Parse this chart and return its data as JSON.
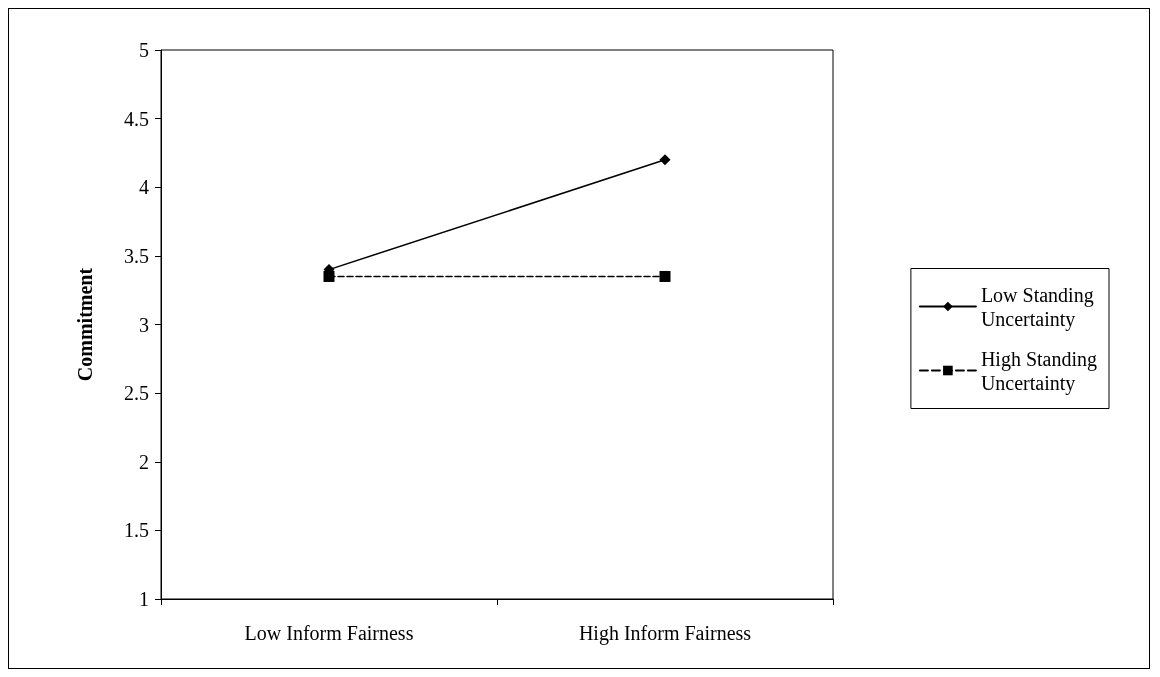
{
  "chart_data": {
    "type": "line",
    "ylabel": "Commitment",
    "categories": [
      "Low Inform Fairness",
      "High Inform Fairness"
    ],
    "series": [
      {
        "name": "Low Standing Uncertainty",
        "color": "#000000",
        "values": [
          3.4,
          4.2
        ],
        "marker": "diamond",
        "line_style": "solid"
      },
      {
        "name": "High Standing Uncertainty",
        "color": "#000000",
        "values": [
          3.35,
          3.35
        ],
        "marker": "square",
        "line_style": "dashed"
      }
    ],
    "ylim": [
      1,
      5
    ],
    "yticks": [
      1,
      1.5,
      2,
      2.5,
      3,
      3.5,
      4,
      4.5,
      5
    ],
    "grid": false,
    "legend": "right"
  }
}
